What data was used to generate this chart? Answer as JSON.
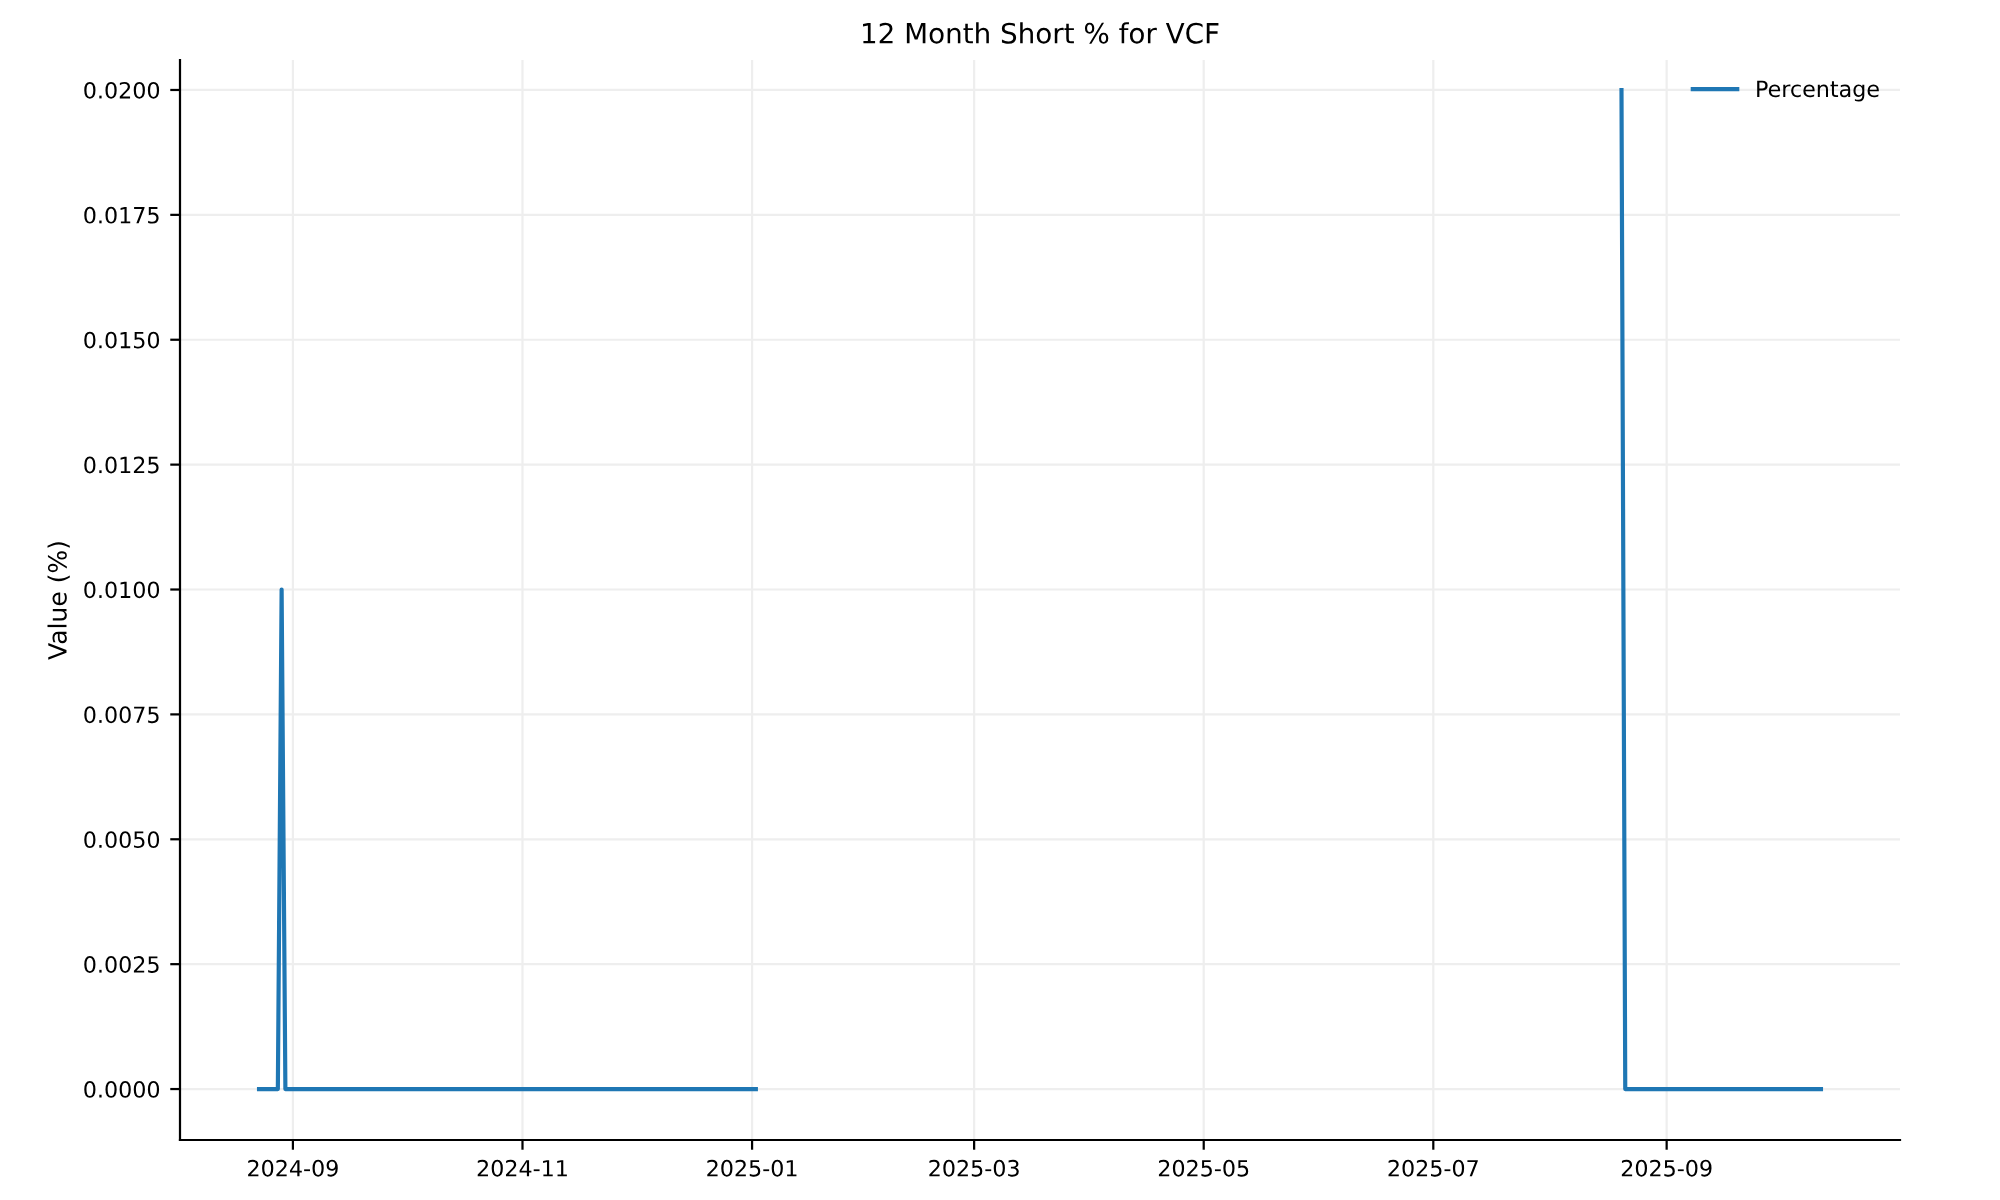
{
  "chart_data": {
    "type": "line",
    "title": "12 Month Short % for VCF",
    "ylabel": "Value (%)",
    "x": [
      "2024-08-23",
      "2024-08-28",
      "2024-08-29",
      "2024-08-30",
      "2025-01-02",
      "2025-04-15",
      "2025-08-20",
      "2025-08-21",
      "2025-10-12"
    ],
    "series": [
      {
        "name": "Percentage",
        "color": "#1f77b4",
        "values": [
          0,
          0,
          0.01,
          0,
          0,
          null,
          0.02,
          0,
          0
        ]
      }
    ],
    "xlim": [
      "2024-08-02",
      "2025-11-02"
    ],
    "xticks": [
      {
        "value": "2024-09-01",
        "label": "2024-09"
      },
      {
        "value": "2024-11-01",
        "label": "2024-11"
      },
      {
        "value": "2025-01-01",
        "label": "2025-01"
      },
      {
        "value": "2025-03-01",
        "label": "2025-03"
      },
      {
        "value": "2025-05-01",
        "label": "2025-05"
      },
      {
        "value": "2025-07-01",
        "label": "2025-07"
      },
      {
        "value": "2025-09-01",
        "label": "2025-09"
      }
    ],
    "ylim": [
      -0.00102,
      0.0206
    ],
    "yticks": [
      {
        "value": 0,
        "label": "0.0000"
      },
      {
        "value": 0.0025,
        "label": "0.0025"
      },
      {
        "value": 0.005,
        "label": "0.0050"
      },
      {
        "value": 0.0075,
        "label": "0.0075"
      },
      {
        "value": 0.01,
        "label": "0.0100"
      },
      {
        "value": 0.0125,
        "label": "0.0125"
      },
      {
        "value": 0.015,
        "label": "0.0150"
      },
      {
        "value": 0.0175,
        "label": "0.0175"
      },
      {
        "value": 0.02,
        "label": "0.0200"
      }
    ],
    "grid": true,
    "legend": "top right",
    "marker": "none",
    "line_style": "solid"
  }
}
